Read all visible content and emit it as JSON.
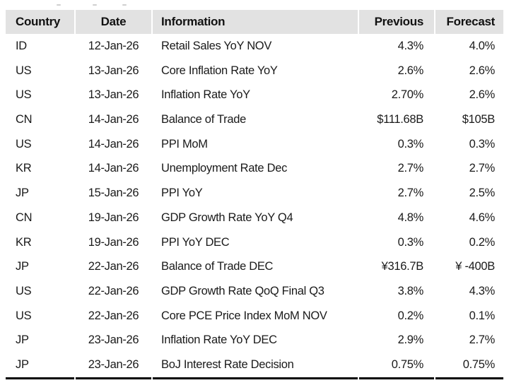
{
  "chart_data": {
    "type": "table",
    "columns": [
      "Country",
      "Date",
      "Information",
      "Previous",
      "Forecast"
    ],
    "rows": [
      [
        "ID",
        "12-Jan-26",
        "Retail Sales YoY NOV",
        "4.3%",
        "4.0%"
      ],
      [
        "US",
        "13-Jan-26",
        "Core Inflation Rate YoY",
        "2.6%",
        "2.6%"
      ],
      [
        "US",
        "13-Jan-26",
        "Inflation Rate YoY",
        "2.70%",
        "2.6%"
      ],
      [
        "CN",
        "14-Jan-26",
        "Balance of Trade",
        "$111.68B",
        "$105B"
      ],
      [
        "US",
        "14-Jan-26",
        "PPI MoM",
        "0.3%",
        "0.3%"
      ],
      [
        "KR",
        "14-Jan-26",
        "Unemployment Rate Dec",
        "2.7%",
        "2.7%"
      ],
      [
        "JP",
        "15-Jan-26",
        "PPI YoY",
        "2.7%",
        "2.5%"
      ],
      [
        "CN",
        "19-Jan-26",
        "GDP Growth Rate YoY Q4",
        "4.8%",
        "4.6%"
      ],
      [
        "KR",
        "19-Jan-26",
        "PPI YoY DEC",
        "0.3%",
        "0.2%"
      ],
      [
        "JP",
        "22-Jan-26",
        "Balance of Trade DEC",
        "¥316.7B",
        "¥ -400B"
      ],
      [
        "US",
        "22-Jan-26",
        "GDP Growth Rate QoQ Final Q3",
        "3.8%",
        "4.3%"
      ],
      [
        "US",
        "22-Jan-26",
        "Core PCE Price Index MoM NOV",
        "0.2%",
        "0.1%"
      ],
      [
        "JP",
        "23-Jan-26",
        "Inflation Rate YoY DEC",
        "2.9%",
        "2.7%"
      ],
      [
        "JP",
        "23-Jan-26",
        "BoJ Interest Rate Decision",
        "0.75%",
        "0.75%"
      ]
    ],
    "layout": {
      "grid": "off",
      "header_background": "#e2e2e2",
      "bottom_border": "thick-black-segmented"
    }
  },
  "colors": {
    "header_bg": "#e2e2e2",
    "text": "#1a1a1a",
    "border": "#000000"
  }
}
